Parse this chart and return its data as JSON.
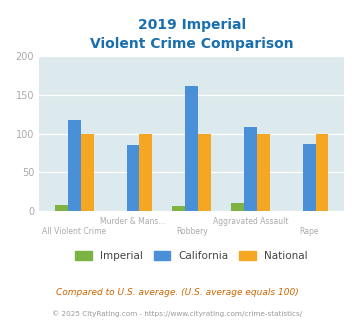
{
  "title_line1": "2019 Imperial",
  "title_line2": "Violent Crime Comparison",
  "categories": [
    "All Violent Crime",
    "Murder & Mans...",
    "Robbery",
    "Aggravated Assault",
    "Rape"
  ],
  "imperial": [
    8,
    0,
    7,
    10,
    0
  ],
  "california": [
    118,
    85,
    162,
    108,
    87
  ],
  "national": [
    100,
    100,
    100,
    100,
    100
  ],
  "imperial_color": "#7cb342",
  "california_color": "#4a90d9",
  "national_color": "#f5a623",
  "bg_color": "#ddeaed",
  "ylim": [
    0,
    200
  ],
  "yticks": [
    0,
    50,
    100,
    150,
    200
  ],
  "footnote1": "Compared to U.S. average. (U.S. average equals 100)",
  "footnote2": "© 2025 CityRating.com - https://www.cityrating.com/crime-statistics/",
  "title_color": "#1a6faf",
  "footnote1_color": "#cc6600",
  "footnote2_color": "#999999",
  "tick_label_color": "#aaaaaa",
  "legend_label_color": "#444444",
  "bar_width": 0.22
}
